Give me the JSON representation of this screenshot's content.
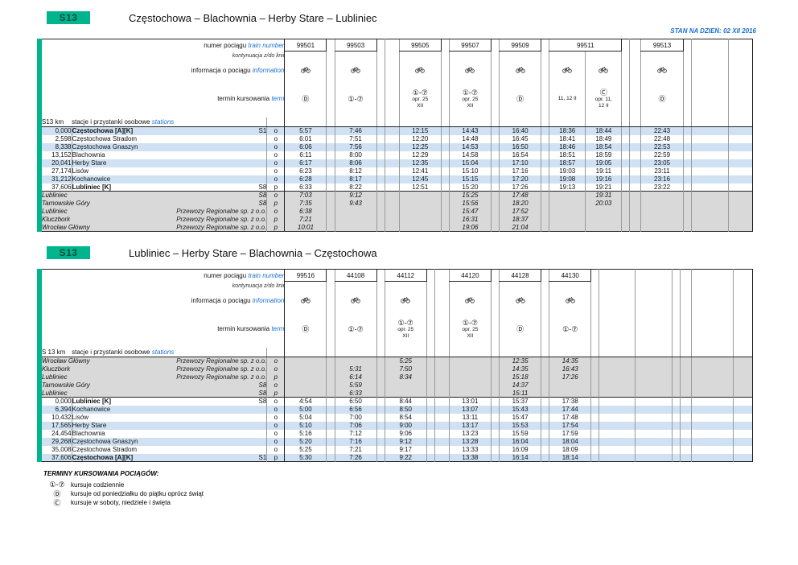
{
  "page": {
    "status_line": "STAN NA DZIEŃ: 02 XII 2016",
    "legend": {
      "title": "TERMINY KURSOWANIA POCIĄGÓW:",
      "items": [
        {
          "symbol": "①-⑦",
          "text": "kursuje codziennie"
        },
        {
          "symbol": "Ⓓ",
          "text": "kursuje od poniedziałku do piątku oprócz świąt"
        },
        {
          "symbol": "Ⓒ",
          "text": "kursuje w soboty, niedziele i święta"
        }
      ]
    }
  },
  "labels": {
    "train_number_pl": "numer pociągu",
    "train_number_en": "train number",
    "continuation": "kontynuacja z/do linii",
    "info_pl": "informacja o pociągu",
    "info_en": "information",
    "term_pl": "termin kursowania",
    "term_en": "term",
    "stations_pl": "stacje i przystanki osobowe",
    "stations_en": "stations"
  },
  "colors": {
    "line_green": "#00b48e",
    "blue_text": "#1b6fd0",
    "stripe_blue": "#cfe1f2",
    "gray_row": "#d9d9d9"
  },
  "tables": [
    {
      "badge": "S13",
      "title": "Częstochowa – Blachownia – Herby Stare – Lubliniec",
      "km_label": "S13 km",
      "stripe_start": 0,
      "columns": [
        {
          "w": 52,
          "train": "99501",
          "bike": true,
          "term": [
            "Ⓓ"
          ]
        },
        {
          "w": 10
        },
        {
          "w": 52,
          "train": "99503",
          "bike": true,
          "term": [
            "①-⑦"
          ]
        },
        {
          "w": 10
        },
        {
          "w": 18
        },
        {
          "w": 52,
          "train": "99505",
          "bike": true,
          "term": [
            "①-⑦",
            "opr. 25",
            "XII"
          ]
        },
        {
          "w": 10
        },
        {
          "w": 52,
          "train": "99507",
          "bike": true,
          "term": [
            "①-⑦",
            "opr. 25",
            "XII"
          ]
        },
        {
          "w": 10
        },
        {
          "w": 52,
          "train": "99509",
          "bike": true,
          "term": [
            "Ⓓ"
          ]
        },
        {
          "w": 10
        },
        {
          "w": 45,
          "train": "99511",
          "span": 2,
          "bike": true,
          "term": [
            "11, 12 II"
          ]
        },
        {
          "w": 45,
          "covered": true,
          "bike": true,
          "term": [
            "Ⓒ",
            "opr. 11,",
            "12 II"
          ]
        },
        {
          "w": 10
        },
        {
          "w": 14
        },
        {
          "w": 52,
          "train": "99513",
          "bike": true,
          "term": [
            "Ⓓ"
          ]
        },
        {
          "w": 10
        },
        {
          "w": 46
        },
        {
          "w": 30
        }
      ],
      "rows": [
        {
          "type": "station",
          "km": "0,000",
          "name": "Częstochowa [A][K]",
          "bold": true,
          "badge": "S1",
          "op": "o",
          "times": {
            "0": "5:57",
            "2": "7:46",
            "5": "12:15",
            "7": "14:43",
            "9": "16:40",
            "11": "18:36",
            "12": "18:44",
            "15": "22:43"
          }
        },
        {
          "type": "station",
          "km": "2,598",
          "name": "Częstochowa Stradom",
          "op": "o",
          "times": {
            "0": "6:01",
            "2": "7:51",
            "5": "12:20",
            "7": "14:48",
            "9": "16:45",
            "11": "18:41",
            "12": "18:49",
            "15": "22:48"
          }
        },
        {
          "type": "station",
          "km": "8,338",
          "name": "Częstochowa Gnaszyn",
          "op": "o",
          "times": {
            "0": "6:06",
            "2": "7:56",
            "5": "12:25",
            "7": "14:53",
            "9": "16:50",
            "11": "18:46",
            "12": "18:54",
            "15": "22:53"
          }
        },
        {
          "type": "station",
          "km": "13,152",
          "name": "Blachownia",
          "op": "o",
          "times": {
            "0": "6:11",
            "2": "8:00",
            "5": "12:29",
            "7": "14:58",
            "9": "16:54",
            "11": "18:51",
            "12": "18:59",
            "15": "22:59"
          }
        },
        {
          "type": "station",
          "km": "20,041",
          "name": "Herby Stare",
          "op": "o",
          "times": {
            "0": "6:17",
            "2": "8:06",
            "5": "12:35",
            "7": "15:04",
            "9": "17:10",
            "11": "18:57",
            "12": "19:05",
            "15": "23:05"
          }
        },
        {
          "type": "station",
          "km": "27,174",
          "name": "Lisów",
          "op": "o",
          "times": {
            "0": "6:23",
            "2": "8:12",
            "5": "12:41",
            "7": "15:10",
            "9": "17:16",
            "11": "19:03",
            "12": "19:11",
            "15": "23:11"
          }
        },
        {
          "type": "station",
          "km": "31,212",
          "name": "Kochanowice",
          "op": "o",
          "times": {
            "0": "6:28",
            "2": "8:17",
            "5": "12:45",
            "7": "15:15",
            "9": "17:20",
            "11": "19:08",
            "12": "19:16",
            "15": "23:16"
          }
        },
        {
          "type": "station",
          "km": "37,606",
          "name": "Lubliniec [K]",
          "bold": true,
          "badge": "S8",
          "op": "p",
          "times": {
            "0": "6:33",
            "2": "8:22",
            "5": "12:51",
            "7": "15:20",
            "9": "17:26",
            "11": "19:13",
            "12": "19:21",
            "15": "23:22"
          }
        },
        {
          "type": "gray",
          "name": "Lubliniec",
          "badge": "S8",
          "op": "o",
          "times": {
            "0": "7:03",
            "2": "9:12",
            "7": "15:25",
            "9": "17:48",
            "12": "19:31"
          }
        },
        {
          "type": "gray",
          "name": "Tarnowskie Góry",
          "badge": "S8",
          "op": "p",
          "times": {
            "0": "7:35",
            "2": "9:43",
            "7": "15:56",
            "9": "18:20",
            "12": "20:03"
          }
        },
        {
          "type": "gray",
          "name": "Lubliniec",
          "badge": "Przewozy Regionalne sp. z o.o.",
          "op": "o",
          "times": {
            "0": "6:38",
            "7": "15:47",
            "9": "17:52"
          }
        },
        {
          "type": "gray",
          "name": "Kluczbork",
          "badge": "Przewozy Regionalne sp. z o.o.",
          "op": "p",
          "times": {
            "0": "7:21",
            "7": "16:31",
            "9": "18:37"
          }
        },
        {
          "type": "gray",
          "name": "Wrocław Główny",
          "badge": "Przewozy Regionalne sp. z o.o.",
          "op": "p",
          "times": {
            "0": "10:01",
            "7": "19:06",
            "9": "21:04"
          }
        }
      ]
    },
    {
      "badge": "S13",
      "title": "Lubliniec – Herby Stare – Blachownia – Częstochowa",
      "km_label": "S 13 km",
      "stripe_start": 1,
      "columns": [
        {
          "w": 52,
          "train": "99516",
          "bike": true,
          "term": [
            "Ⓓ"
          ]
        },
        {
          "w": 10
        },
        {
          "w": 52,
          "train": "44108",
          "bike": true,
          "term": [
            "①-⑦"
          ]
        },
        {
          "w": 10
        },
        {
          "w": 52,
          "train": "44112",
          "bike": true,
          "term": [
            "①-⑦",
            "opr. 25",
            "XII"
          ]
        },
        {
          "w": 10
        },
        {
          "w": 18
        },
        {
          "w": 52,
          "train": "44120",
          "bike": true,
          "term": [
            "①-⑦",
            "opr. 25",
            "XII"
          ]
        },
        {
          "w": 10
        },
        {
          "w": 52,
          "train": "44128",
          "bike": true,
          "term": [
            "Ⓓ"
          ]
        },
        {
          "w": 10
        },
        {
          "w": 52,
          "train": "44130",
          "bike": true,
          "term": [
            "①-⑦"
          ]
        },
        {
          "w": 10
        },
        {
          "w": 45
        },
        {
          "w": 45
        },
        {
          "w": 10
        },
        {
          "w": 14
        },
        {
          "w": 52
        },
        {
          "w": 24
        }
      ],
      "rows": [
        {
          "type": "gray",
          "name": "Wrocław Główny",
          "badge": "Przewozy Regionalne sp. z o.o.",
          "op": "o",
          "times": {
            "4": "5:25",
            "9": "12:35",
            "11": "14:35"
          }
        },
        {
          "type": "gray",
          "name": "Kluczbork",
          "badge": "Przewozy Regionalne sp. z o.o.",
          "op": "o",
          "times": {
            "2": "5:31",
            "4": "7:50",
            "9": "14:35",
            "11": "16:43"
          }
        },
        {
          "type": "gray",
          "name": "Lubliniec",
          "badge": "Przewozy Regionalne sp. z o.o.",
          "op": "p",
          "times": {
            "2": "6:14",
            "4": "8:34",
            "9": "15:18",
            "11": "17:26"
          }
        },
        {
          "type": "gray",
          "name": "Tarnowskie Góry",
          "badge": "S8",
          "op": "o",
          "times": {
            "2": "5:59",
            "9": "14:37"
          }
        },
        {
          "type": "gray",
          "name": "Lubliniec",
          "badge": "S8",
          "op": "p",
          "times": {
            "2": "6:33",
            "9": "15:11"
          }
        },
        {
          "type": "station",
          "km": "0,000",
          "name": "Lubliniec [K]",
          "bold": true,
          "badge": "S8",
          "op": "o",
          "times": {
            "0": "4:54",
            "2": "6:50",
            "4": "8:44",
            "7": "13:01",
            "9": "15:37",
            "11": "17:38"
          }
        },
        {
          "type": "station",
          "km": "6,394",
          "name": "Kochanowice",
          "op": "o",
          "times": {
            "0": "5:00",
            "2": "6:56",
            "4": "8:50",
            "7": "13:07",
            "9": "15:43",
            "11": "17:44"
          }
        },
        {
          "type": "station",
          "km": "10,432",
          "name": "Lisów",
          "op": "o",
          "times": {
            "0": "5:04",
            "2": "7:00",
            "4": "8:54",
            "7": "13:11",
            "9": "15:47",
            "11": "17:48"
          }
        },
        {
          "type": "station",
          "km": "17,565",
          "name": "Herby Stare",
          "op": "o",
          "times": {
            "0": "5:10",
            "2": "7:06",
            "4": "9:00",
            "7": "13:17",
            "9": "15:53",
            "11": "17:54"
          }
        },
        {
          "type": "station",
          "km": "24,454",
          "name": "Blachownia",
          "op": "o",
          "times": {
            "0": "5:16",
            "2": "7:12",
            "4": "9:06",
            "7": "13:23",
            "9": "15:59",
            "11": "17:59"
          }
        },
        {
          "type": "station",
          "km": "29,268",
          "name": "Częstochowa Gnaszyn",
          "op": "o",
          "times": {
            "0": "5:20",
            "2": "7:16",
            "4": "9:12",
            "7": "13:28",
            "9": "16:04",
            "11": "18:04"
          }
        },
        {
          "type": "station",
          "km": "35,008",
          "name": "Częstochowa Stradom",
          "op": "o",
          "times": {
            "0": "5:25",
            "2": "7:21",
            "4": "9:17",
            "7": "13:33",
            "9": "16:09",
            "11": "18:09"
          }
        },
        {
          "type": "station",
          "km": "37,606",
          "name": "Częstochowa [A][K]",
          "bold": true,
          "badge": "S1",
          "op": "p",
          "times": {
            "0": "5:30",
            "2": "7:26",
            "4": "9:22",
            "7": "13:38",
            "9": "16:14",
            "11": "18:14"
          }
        }
      ]
    }
  ]
}
